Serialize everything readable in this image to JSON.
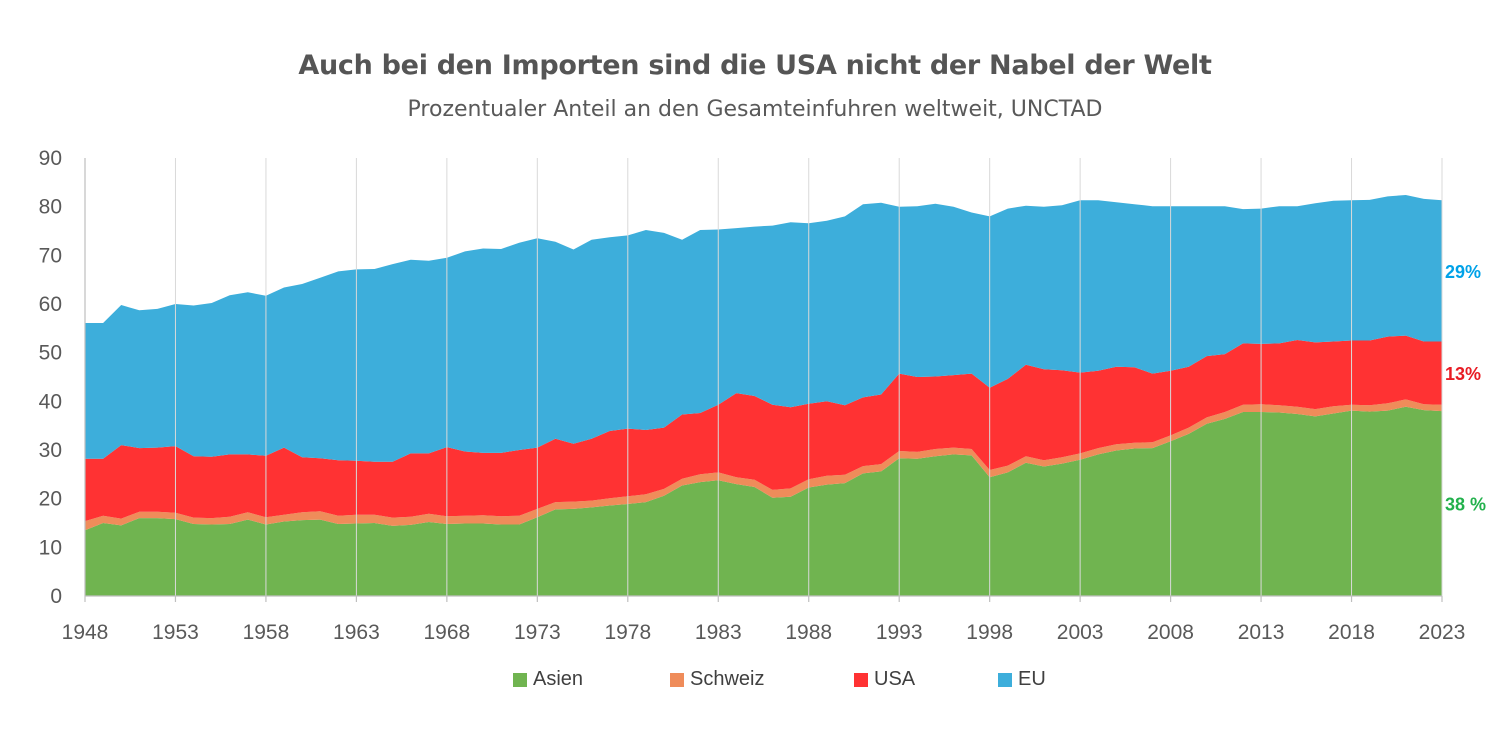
{
  "header": {
    "title": "Auch bei den Importen sind die USA nicht der Nabel der Welt",
    "subtitle": "Prozentualer Anteil an den Gesamteinfuhren weltweit, UNCTAD"
  },
  "chart_data": {
    "type": "area",
    "stacked": true,
    "title": "Auch bei den Importen sind die USA nicht der Nabel der Welt",
    "subtitle": "Prozentualer Anteil an den Gesamteinfuhren weltweit, UNCTAD",
    "xlabel": "",
    "ylabel": "",
    "ylim": [
      0,
      90
    ],
    "yticks": [
      0,
      10,
      20,
      30,
      40,
      50,
      60,
      70,
      80,
      90
    ],
    "xticks": [
      1948,
      1953,
      1958,
      1963,
      1968,
      1973,
      1978,
      1983,
      1988,
      1993,
      1998,
      2003,
      2008,
      2013,
      2018,
      2023
    ],
    "grid": "vertical",
    "legend_position": "bottom",
    "x": [
      1948,
      1949,
      1950,
      1951,
      1952,
      1953,
      1954,
      1955,
      1956,
      1957,
      1958,
      1959,
      1960,
      1961,
      1962,
      1963,
      1964,
      1965,
      1966,
      1967,
      1968,
      1969,
      1970,
      1971,
      1972,
      1973,
      1974,
      1975,
      1976,
      1977,
      1978,
      1979,
      1980,
      1981,
      1982,
      1983,
      1984,
      1985,
      1986,
      1987,
      1988,
      1989,
      1990,
      1991,
      1992,
      1993,
      1994,
      1995,
      1996,
      1997,
      1998,
      1999,
      2000,
      2001,
      2002,
      2003,
      2004,
      2005,
      2006,
      2007,
      2008,
      2009,
      2010,
      2011,
      2012,
      2013,
      2014,
      2015,
      2016,
      2017,
      2018,
      2019,
      2020,
      2021,
      2022,
      2023
    ],
    "series": [
      {
        "name": "Asien",
        "color": "#70b450",
        "values": [
          13.5,
          15.0,
          14.5,
          16.0,
          16.0,
          15.8,
          14.8,
          14.7,
          14.8,
          15.7,
          14.7,
          15.3,
          15.6,
          15.7,
          14.8,
          14.9,
          15.0,
          14.4,
          14.6,
          15.2,
          14.8,
          14.9,
          14.9,
          14.7,
          14.7,
          16.2,
          17.8,
          17.9,
          18.2,
          18.6,
          18.9,
          19.3,
          20.6,
          22.7,
          23.4,
          23.8,
          23.0,
          22.4,
          20.2,
          20.4,
          22.3,
          22.9,
          23.2,
          25.2,
          25.6,
          28.3,
          28.2,
          28.7,
          29.1,
          28.9,
          24.4,
          25.4,
          27.4,
          26.6,
          27.2,
          28.0,
          29.1,
          29.9,
          30.3,
          30.4,
          31.8,
          33.3,
          35.4,
          36.4,
          37.8,
          37.8,
          37.7,
          37.4,
          36.9,
          37.5,
          38.1,
          37.9,
          38.1,
          38.9,
          38.2,
          38.0
        ]
      },
      {
        "name": "Schweiz",
        "color": "#ef8c5a",
        "values": [
          1.9,
          1.5,
          1.4,
          1.3,
          1.3,
          1.3,
          1.3,
          1.3,
          1.5,
          1.5,
          1.5,
          1.4,
          1.6,
          1.7,
          1.7,
          1.8,
          1.7,
          1.7,
          1.7,
          1.7,
          1.6,
          1.6,
          1.7,
          1.7,
          1.8,
          1.7,
          1.5,
          1.5,
          1.4,
          1.5,
          1.6,
          1.6,
          1.4,
          1.4,
          1.6,
          1.6,
          1.4,
          1.5,
          1.6,
          1.7,
          1.7,
          1.8,
          1.7,
          1.5,
          1.5,
          1.5,
          1.4,
          1.5,
          1.4,
          1.3,
          1.5,
          1.4,
          1.3,
          1.3,
          1.3,
          1.3,
          1.3,
          1.3,
          1.2,
          1.2,
          1.2,
          1.3,
          1.3,
          1.4,
          1.5,
          1.6,
          1.5,
          1.5,
          1.5,
          1.5,
          1.2,
          1.3,
          1.5,
          1.5,
          1.2,
          1.3
        ]
      },
      {
        "name": "USA",
        "color": "#ff3233",
        "values": [
          12.8,
          11.7,
          15.1,
          13.1,
          13.2,
          13.7,
          12.6,
          12.6,
          12.8,
          11.9,
          12.6,
          13.8,
          11.3,
          10.9,
          11.4,
          11.1,
          10.9,
          11.5,
          13.0,
          12.4,
          14.2,
          13.2,
          12.8,
          13.0,
          13.5,
          12.6,
          13.0,
          11.9,
          12.7,
          13.8,
          13.9,
          13.2,
          12.6,
          13.2,
          12.6,
          13.9,
          17.3,
          17.2,
          17.5,
          16.7,
          15.5,
          15.3,
          14.3,
          14.1,
          14.3,
          15.9,
          15.4,
          14.9,
          14.9,
          15.5,
          16.9,
          17.8,
          18.8,
          18.7,
          17.9,
          16.6,
          15.9,
          15.9,
          15.5,
          14.1,
          13.3,
          12.5,
          12.6,
          11.9,
          12.6,
          12.4,
          12.7,
          13.7,
          13.7,
          13.3,
          13.2,
          13.3,
          13.7,
          13.1,
          12.9,
          13.0
        ]
      },
      {
        "name": "EU",
        "color": "#3daedb",
        "values": [
          27.9,
          27.9,
          28.8,
          28.3,
          28.5,
          29.2,
          31.0,
          31.6,
          32.7,
          33.3,
          32.9,
          32.9,
          35.6,
          37.1,
          38.8,
          39.3,
          39.6,
          40.6,
          39.8,
          39.6,
          38.9,
          41.1,
          42.0,
          41.9,
          42.6,
          43.0,
          40.5,
          39.9,
          40.9,
          39.8,
          39.7,
          41.1,
          40.0,
          35.9,
          37.6,
          36.0,
          33.9,
          34.8,
          36.8,
          38.0,
          37.1,
          37.1,
          38.8,
          39.7,
          39.4,
          34.3,
          35.1,
          35.5,
          34.6,
          33.1,
          35.2,
          35.0,
          32.7,
          33.4,
          33.9,
          35.4,
          35.0,
          33.8,
          33.5,
          34.4,
          33.8,
          33.0,
          30.8,
          30.4,
          27.6,
          27.8,
          28.2,
          27.5,
          28.6,
          28.9,
          28.8,
          28.9,
          28.8,
          28.9,
          29.3,
          29.0
        ]
      }
    ],
    "annotations": [
      {
        "text": "29%",
        "series": "EU",
        "color": "#00a2e8"
      },
      {
        "text": "13%",
        "series": "USA",
        "color": "#e81c24"
      },
      {
        "text": "38 %",
        "series": "Asien",
        "color": "#22b14c"
      }
    ]
  }
}
